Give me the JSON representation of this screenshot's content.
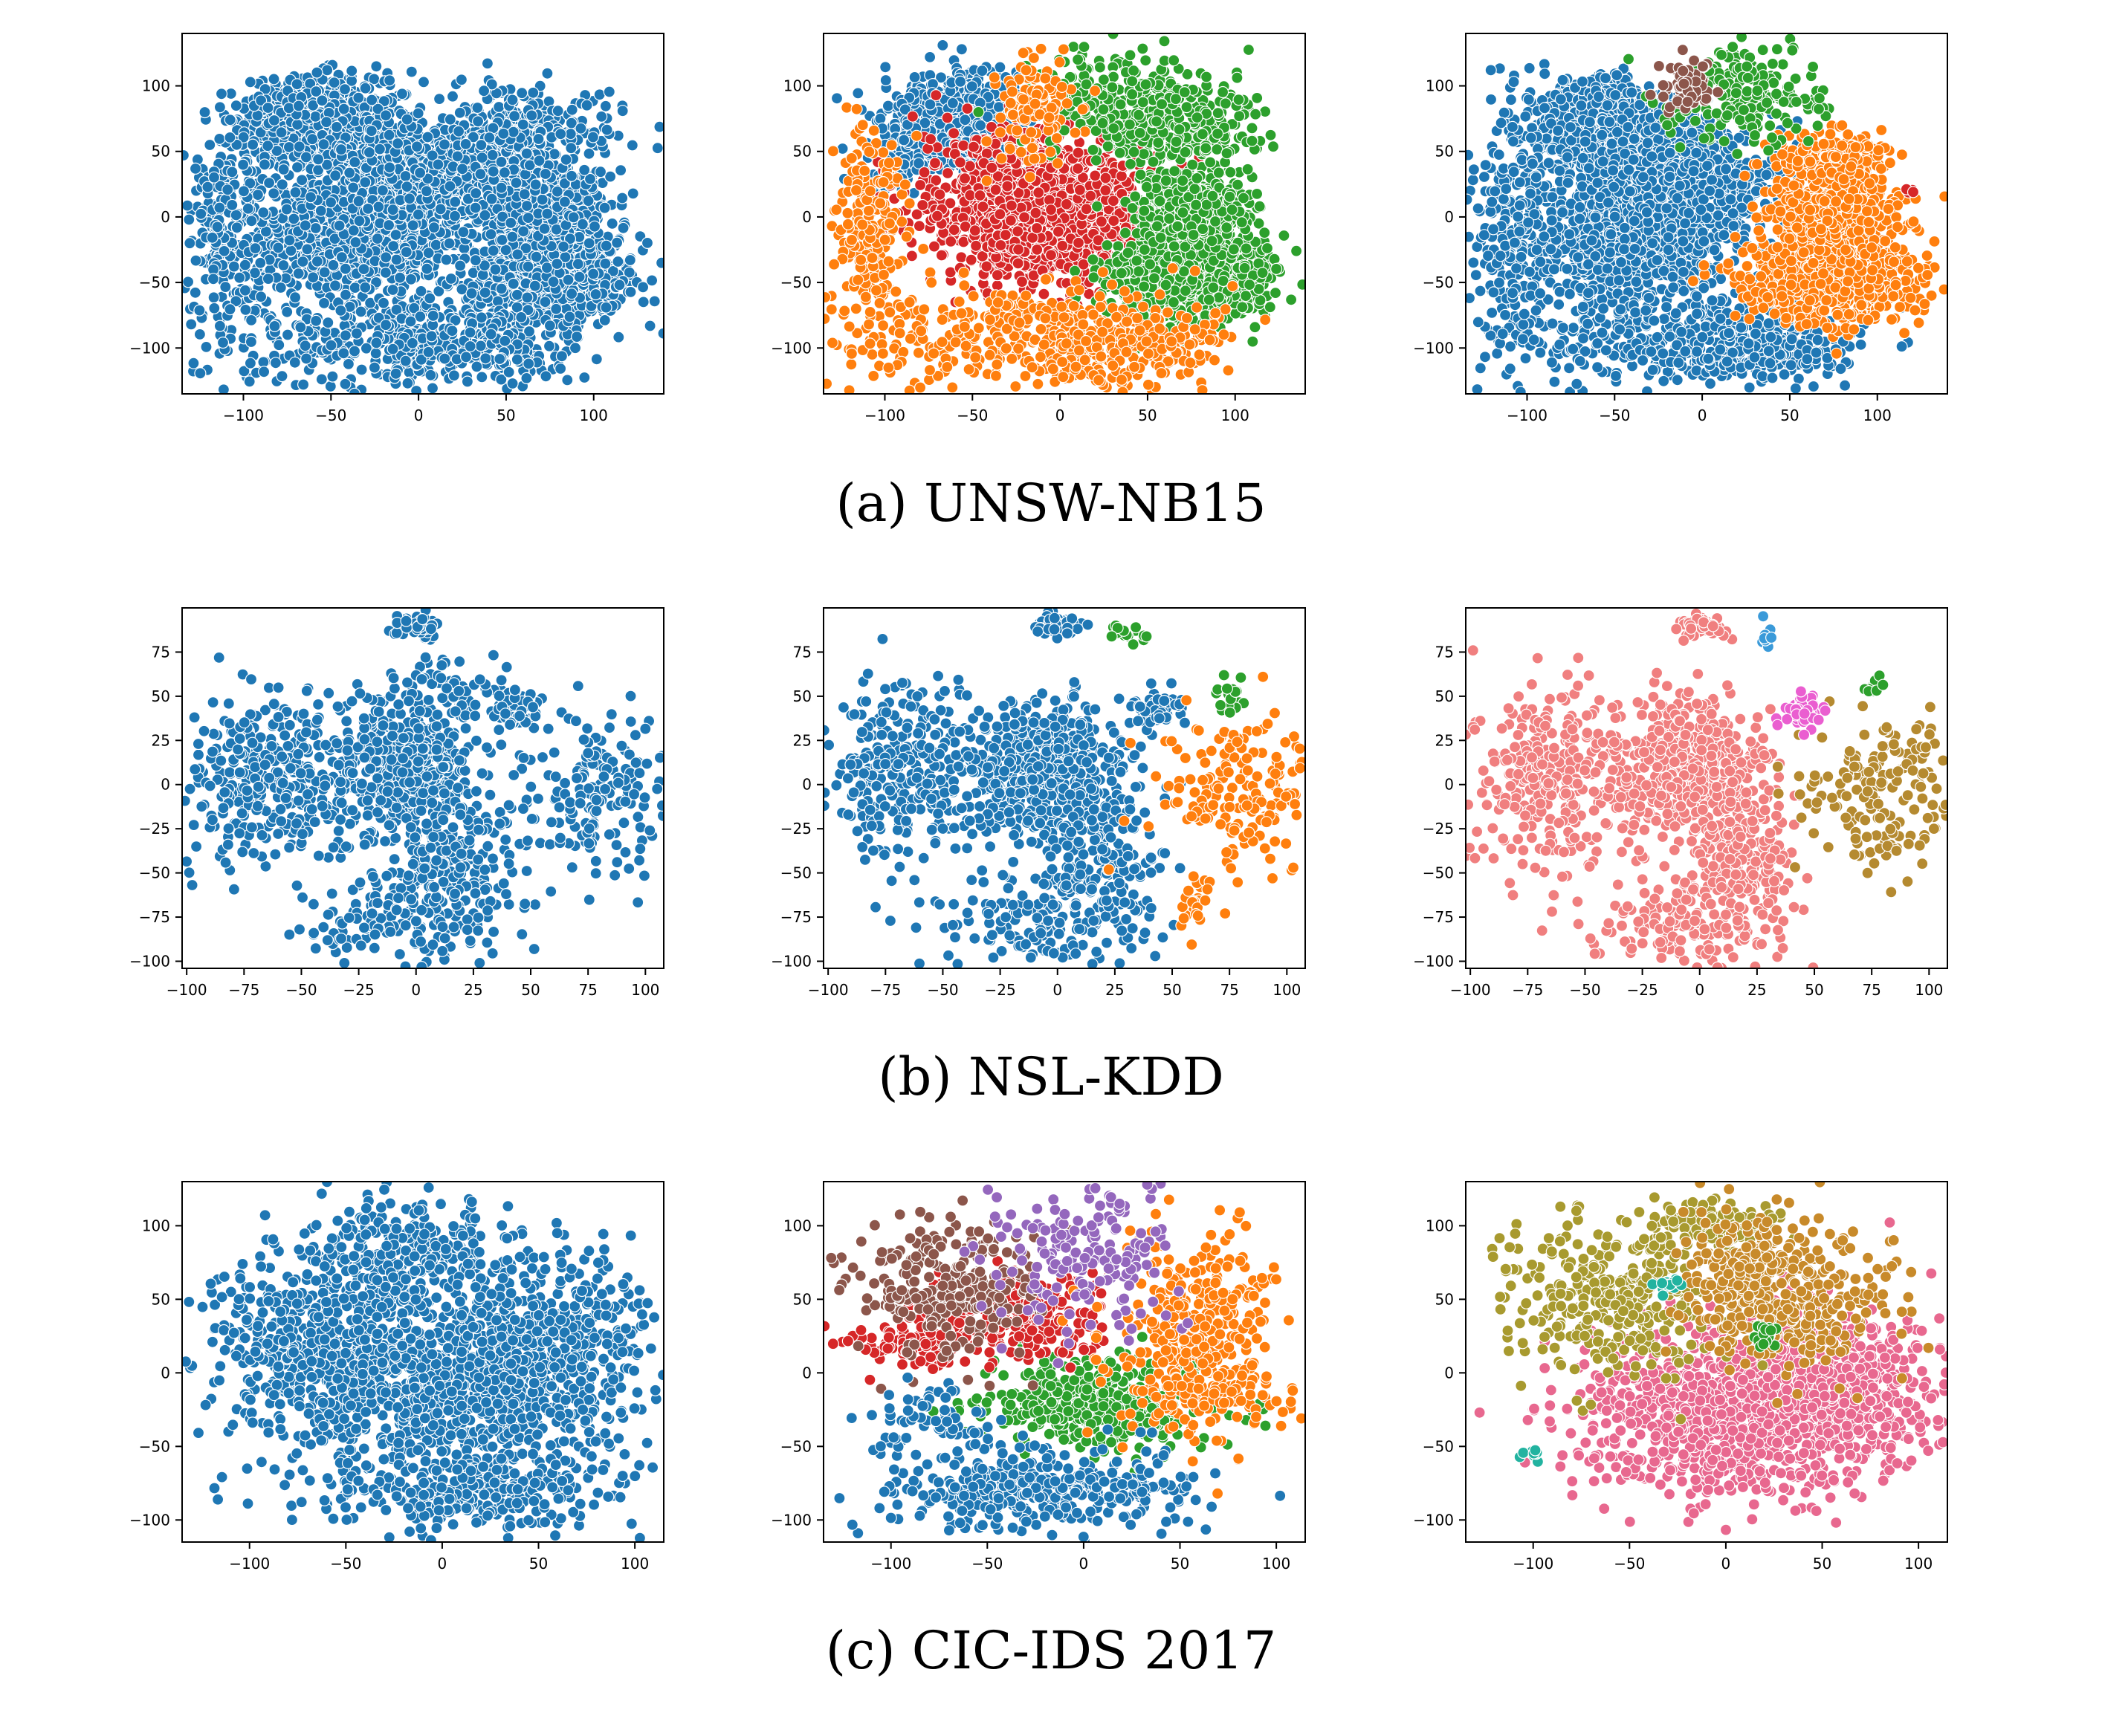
{
  "figure": {
    "captions": [
      "(a) UNSW-NB15",
      "(b) NSL-KDD",
      "(c) CIC-IDS 2017"
    ],
    "palette": {
      "blue": "#1f77b4",
      "orange": "#ff7f0e",
      "green": "#2ca02c",
      "red": "#d62728",
      "purple": "#9467bd",
      "brown": "#8c564b",
      "salmon": "#f07f7f",
      "olive": "#a89a2f",
      "pink": "#e8688f",
      "gold": "#c88a2a",
      "teal": "#22b3a0",
      "magenta": "#ea5ed0",
      "lightblue": "#3a9ad9",
      "ochre": "#b58a30"
    }
  },
  "chart_data": [
    {
      "type": "scatter",
      "dataset": "UNSW-NB15",
      "coloring": "single",
      "xlim": [
        -135,
        140
      ],
      "ylim": [
        -135,
        140
      ],
      "xticks": [
        -100,
        -50,
        0,
        50,
        100
      ],
      "yticks": [
        -100,
        -50,
        0,
        50,
        100
      ],
      "clusters": [
        {
          "x": -58,
          "y": 72,
          "sx": 20,
          "sy": 16,
          "n": 900,
          "color": "blue"
        },
        {
          "x": -40,
          "y": -15,
          "sx": 28,
          "sy": 24,
          "n": 900,
          "color": "blue"
        },
        {
          "x": -10,
          "y": 30,
          "sx": 26,
          "sy": 22,
          "n": 700,
          "color": "blue"
        },
        {
          "x": 75,
          "y": -45,
          "sx": 24,
          "sy": 18,
          "n": 800,
          "color": "blue"
        },
        {
          "x": 75,
          "y": 8,
          "sx": 16,
          "sy": 13,
          "n": 450,
          "color": "blue"
        },
        {
          "x": 65,
          "y": 65,
          "sx": 24,
          "sy": 18,
          "n": 260,
          "color": "blue"
        },
        {
          "x": 35,
          "y": 35,
          "sx": 22,
          "sy": 20,
          "n": 350,
          "color": "blue"
        },
        {
          "x": -110,
          "y": -10,
          "sx": 12,
          "sy": 45,
          "n": 220,
          "color": "blue"
        },
        {
          "x": -20,
          "y": -90,
          "sx": 50,
          "sy": 20,
          "n": 360,
          "color": "blue"
        },
        {
          "x": 35,
          "y": -100,
          "sx": 28,
          "sy": 14,
          "n": 200,
          "color": "blue"
        }
      ]
    },
    {
      "type": "scatter",
      "dataset": "UNSW-NB15",
      "coloring": "4-cluster",
      "xlim": [
        -135,
        140
      ],
      "ylim": [
        -135,
        140
      ],
      "xticks": [
        -100,
        -50,
        0,
        50,
        100
      ],
      "yticks": [
        -100,
        -50,
        0,
        50,
        100
      ],
      "clusters": [
        {
          "x": -58,
          "y": 72,
          "sx": 20,
          "sy": 16,
          "n": 900,
          "color": "blue"
        },
        {
          "x": -95,
          "y": 35,
          "sx": 10,
          "sy": 10,
          "n": 60,
          "color": "blue"
        },
        {
          "x": -12,
          "y": 5,
          "sx": 32,
          "sy": 28,
          "n": 1500,
          "color": "red"
        },
        {
          "x": 75,
          "y": -45,
          "sx": 24,
          "sy": 18,
          "n": 800,
          "color": "green"
        },
        {
          "x": 75,
          "y": 8,
          "sx": 16,
          "sy": 13,
          "n": 450,
          "color": "green"
        },
        {
          "x": 65,
          "y": 65,
          "sx": 24,
          "sy": 18,
          "n": 260,
          "color": "green"
        },
        {
          "x": 30,
          "y": 90,
          "sx": 25,
          "sy": 18,
          "n": 220,
          "color": "green"
        },
        {
          "x": -110,
          "y": -10,
          "sx": 12,
          "sy": 45,
          "n": 220,
          "color": "orange"
        },
        {
          "x": -20,
          "y": -90,
          "sx": 50,
          "sy": 20,
          "n": 360,
          "color": "orange"
        },
        {
          "x": 35,
          "y": -100,
          "sx": 28,
          "sy": 14,
          "n": 200,
          "color": "orange"
        },
        {
          "x": -15,
          "y": 85,
          "sx": 12,
          "sy": 20,
          "n": 120,
          "color": "orange"
        }
      ]
    },
    {
      "type": "scatter",
      "dataset": "UNSW-NB15",
      "coloring": "ground-truth",
      "xlim": [
        -135,
        140
      ],
      "ylim": [
        -135,
        140
      ],
      "xticks": [
        -100,
        -50,
        0,
        50,
        100
      ],
      "yticks": [
        -100,
        -50,
        0,
        50,
        100
      ],
      "clusters": [
        {
          "x": -58,
          "y": 72,
          "sx": 20,
          "sy": 16,
          "n": 900,
          "color": "blue"
        },
        {
          "x": -40,
          "y": -15,
          "sx": 28,
          "sy": 24,
          "n": 900,
          "color": "blue"
        },
        {
          "x": -10,
          "y": 30,
          "sx": 26,
          "sy": 22,
          "n": 700,
          "color": "blue"
        },
        {
          "x": -110,
          "y": -10,
          "sx": 12,
          "sy": 45,
          "n": 220,
          "color": "blue"
        },
        {
          "x": -20,
          "y": -90,
          "sx": 50,
          "sy": 20,
          "n": 360,
          "color": "blue"
        },
        {
          "x": 35,
          "y": -100,
          "sx": 28,
          "sy": 14,
          "n": 200,
          "color": "blue"
        },
        {
          "x": 75,
          "y": -45,
          "sx": 24,
          "sy": 18,
          "n": 800,
          "color": "orange"
        },
        {
          "x": 75,
          "y": 8,
          "sx": 16,
          "sy": 13,
          "n": 450,
          "color": "orange"
        },
        {
          "x": 75,
          "y": 45,
          "sx": 18,
          "sy": 10,
          "n": 180,
          "color": "orange"
        },
        {
          "x": 25,
          "y": 90,
          "sx": 25,
          "sy": 18,
          "n": 200,
          "color": "green"
        },
        {
          "x": -10,
          "y": 100,
          "sx": 7,
          "sy": 10,
          "n": 70,
          "color": "brown"
        },
        {
          "x": 120,
          "y": 18,
          "sx": 2,
          "sy": 2,
          "n": 5,
          "color": "red"
        }
      ]
    },
    {
      "type": "scatter",
      "dataset": "NSL-KDD",
      "coloring": "single",
      "xlim": [
        -102,
        108
      ],
      "ylim": [
        -104,
        100
      ],
      "xticks": [
        -100,
        -75,
        -50,
        -25,
        0,
        25,
        50,
        75,
        100
      ],
      "yticks": [
        -100,
        -75,
        -50,
        -25,
        0,
        25,
        50,
        75
      ],
      "clusters": [
        {
          "x": -5,
          "y": 10,
          "sx": 15,
          "sy": 18,
          "n": 500,
          "color": "blue"
        },
        {
          "x": -65,
          "y": 5,
          "sx": 20,
          "sy": 25,
          "n": 350,
          "color": "blue"
        },
        {
          "x": 15,
          "y": -45,
          "sx": 15,
          "sy": 25,
          "n": 250,
          "color": "blue"
        },
        {
          "x": 0,
          "y": 90,
          "sx": 5,
          "sy": 3,
          "n": 60,
          "color": "blue"
        },
        {
          "x": 45,
          "y": 42,
          "sx": 6,
          "sy": 6,
          "n": 60,
          "color": "blue"
        },
        {
          "x": 80,
          "y": -5,
          "sx": 18,
          "sy": 22,
          "n": 180,
          "color": "blue"
        },
        {
          "x": -10,
          "y": -80,
          "sx": 20,
          "sy": 12,
          "n": 120,
          "color": "blue"
        },
        {
          "x": 15,
          "y": 55,
          "sx": 10,
          "sy": 10,
          "n": 60,
          "color": "blue"
        }
      ]
    },
    {
      "type": "scatter",
      "dataset": "NSL-KDD",
      "coloring": "4-cluster",
      "xlim": [
        -102,
        108
      ],
      "ylim": [
        -104,
        100
      ],
      "xticks": [
        -100,
        -75,
        -50,
        -25,
        0,
        25,
        50,
        75,
        100
      ],
      "yticks": [
        -100,
        -75,
        -50,
        -25,
        0,
        25,
        50,
        75
      ],
      "clusters": [
        {
          "x": -5,
          "y": 10,
          "sx": 15,
          "sy": 18,
          "n": 500,
          "color": "blue"
        },
        {
          "x": -65,
          "y": 5,
          "sx": 20,
          "sy": 25,
          "n": 350,
          "color": "blue"
        },
        {
          "x": 15,
          "y": -45,
          "sx": 15,
          "sy": 25,
          "n": 250,
          "color": "blue"
        },
        {
          "x": 0,
          "y": 90,
          "sx": 5,
          "sy": 3,
          "n": 60,
          "color": "blue"
        },
        {
          "x": 45,
          "y": 42,
          "sx": 6,
          "sy": 6,
          "n": 60,
          "color": "blue"
        },
        {
          "x": -10,
          "y": -80,
          "sx": 20,
          "sy": 12,
          "n": 120,
          "color": "blue"
        },
        {
          "x": 80,
          "y": -5,
          "sx": 18,
          "sy": 22,
          "n": 180,
          "color": "orange"
        },
        {
          "x": 60,
          "y": -70,
          "sx": 4,
          "sy": 8,
          "n": 25,
          "color": "orange"
        },
        {
          "x": 75,
          "y": 50,
          "sx": 4,
          "sy": 6,
          "n": 20,
          "color": "green"
        },
        {
          "x": 30,
          "y": 85,
          "sx": 4,
          "sy": 3,
          "n": 15,
          "color": "green"
        }
      ]
    },
    {
      "type": "scatter",
      "dataset": "NSL-KDD",
      "coloring": "ground-truth",
      "xlim": [
        -102,
        108
      ],
      "ylim": [
        -104,
        100
      ],
      "xticks": [
        -100,
        -75,
        -50,
        -25,
        0,
        25,
        50,
        75,
        100
      ],
      "yticks": [
        -100,
        -75,
        -50,
        -25,
        0,
        25,
        50,
        75
      ],
      "clusters": [
        {
          "x": -5,
          "y": 10,
          "sx": 15,
          "sy": 18,
          "n": 500,
          "color": "salmon"
        },
        {
          "x": -65,
          "y": 5,
          "sx": 20,
          "sy": 25,
          "n": 350,
          "color": "salmon"
        },
        {
          "x": 15,
          "y": -45,
          "sx": 15,
          "sy": 25,
          "n": 250,
          "color": "salmon"
        },
        {
          "x": 0,
          "y": 90,
          "sx": 5,
          "sy": 3,
          "n": 60,
          "color": "salmon"
        },
        {
          "x": -10,
          "y": -80,
          "sx": 20,
          "sy": 12,
          "n": 120,
          "color": "salmon"
        },
        {
          "x": 80,
          "y": -5,
          "sx": 18,
          "sy": 22,
          "n": 180,
          "color": "ochre"
        },
        {
          "x": 45,
          "y": 42,
          "sx": 5,
          "sy": 5,
          "n": 50,
          "color": "magenta"
        },
        {
          "x": 30,
          "y": 85,
          "sx": 3,
          "sy": 3,
          "n": 10,
          "color": "lightblue"
        },
        {
          "x": 75,
          "y": 55,
          "sx": 3,
          "sy": 3,
          "n": 10,
          "color": "green"
        }
      ]
    },
    {
      "type": "scatter",
      "dataset": "CIC-IDS 2017",
      "coloring": "single",
      "xlim": [
        -135,
        115
      ],
      "ylim": [
        -115,
        130
      ],
      "xticks": [
        -100,
        -50,
        0,
        50,
        100
      ],
      "yticks": [
        -100,
        -50,
        0,
        50,
        100
      ],
      "clusters": [
        {
          "x": 0,
          "y": -10,
          "sx": 40,
          "sy": 30,
          "n": 900,
          "color": "blue"
        },
        {
          "x": -70,
          "y": 20,
          "sx": 25,
          "sy": 30,
          "n": 400,
          "color": "blue"
        },
        {
          "x": 60,
          "y": 20,
          "sx": 25,
          "sy": 35,
          "n": 400,
          "color": "blue"
        },
        {
          "x": -20,
          "y": 80,
          "sx": 30,
          "sy": 20,
          "n": 300,
          "color": "blue"
        },
        {
          "x": 10,
          "y": -80,
          "sx": 40,
          "sy": 15,
          "n": 300,
          "color": "blue"
        }
      ]
    },
    {
      "type": "scatter",
      "dataset": "CIC-IDS 2017",
      "coloring": "6-cluster",
      "xlim": [
        -135,
        115
      ],
      "ylim": [
        -115,
        130
      ],
      "xticks": [
        -100,
        -50,
        0,
        50,
        100
      ],
      "yticks": [
        -100,
        -50,
        0,
        50,
        100
      ],
      "clusters": [
        {
          "x": 10,
          "y": -20,
          "sx": 28,
          "sy": 15,
          "n": 450,
          "color": "green"
        },
        {
          "x": -30,
          "y": 40,
          "sx": 20,
          "sy": 15,
          "n": 260,
          "color": "red"
        },
        {
          "x": -85,
          "y": 20,
          "sx": 18,
          "sy": 10,
          "n": 100,
          "color": "red"
        },
        {
          "x": -70,
          "y": 60,
          "sx": 25,
          "sy": 25,
          "n": 260,
          "color": "brown"
        },
        {
          "x": 60,
          "y": 20,
          "sx": 22,
          "sy": 35,
          "n": 450,
          "color": "orange"
        },
        {
          "x": -25,
          "y": -80,
          "sx": 40,
          "sy": 15,
          "n": 400,
          "color": "blue"
        },
        {
          "x": -80,
          "y": -30,
          "sx": 15,
          "sy": 12,
          "n": 60,
          "color": "blue"
        },
        {
          "x": 0,
          "y": 80,
          "sx": 25,
          "sy": 30,
          "n": 180,
          "color": "purple"
        }
      ]
    },
    {
      "type": "scatter",
      "dataset": "CIC-IDS 2017",
      "coloring": "ground-truth",
      "xlim": [
        -135,
        115
      ],
      "ylim": [
        -115,
        130
      ],
      "xticks": [
        -100,
        -50,
        0,
        50,
        100
      ],
      "yticks": [
        -100,
        -50,
        0,
        50,
        100
      ],
      "clusters": [
        {
          "x": 10,
          "y": -30,
          "sx": 45,
          "sy": 28,
          "n": 1100,
          "color": "pink"
        },
        {
          "x": 55,
          "y": 0,
          "sx": 25,
          "sy": 25,
          "n": 300,
          "color": "pink"
        },
        {
          "x": -60,
          "y": 50,
          "sx": 30,
          "sy": 25,
          "n": 350,
          "color": "olive"
        },
        {
          "x": -10,
          "y": 100,
          "sx": 20,
          "sy": 10,
          "n": 120,
          "color": "olive"
        },
        {
          "x": 40,
          "y": 50,
          "sx": 25,
          "sy": 25,
          "n": 300,
          "color": "gold"
        },
        {
          "x": 5,
          "y": 70,
          "sx": 12,
          "sy": 20,
          "n": 150,
          "color": "gold"
        },
        {
          "x": -30,
          "y": 60,
          "sx": 4,
          "sy": 3,
          "n": 15,
          "color": "teal"
        },
        {
          "x": -100,
          "y": -55,
          "sx": 3,
          "sy": 2,
          "n": 10,
          "color": "teal"
        },
        {
          "x": 20,
          "y": 25,
          "sx": 3,
          "sy": 4,
          "n": 25,
          "color": "green"
        }
      ]
    }
  ]
}
